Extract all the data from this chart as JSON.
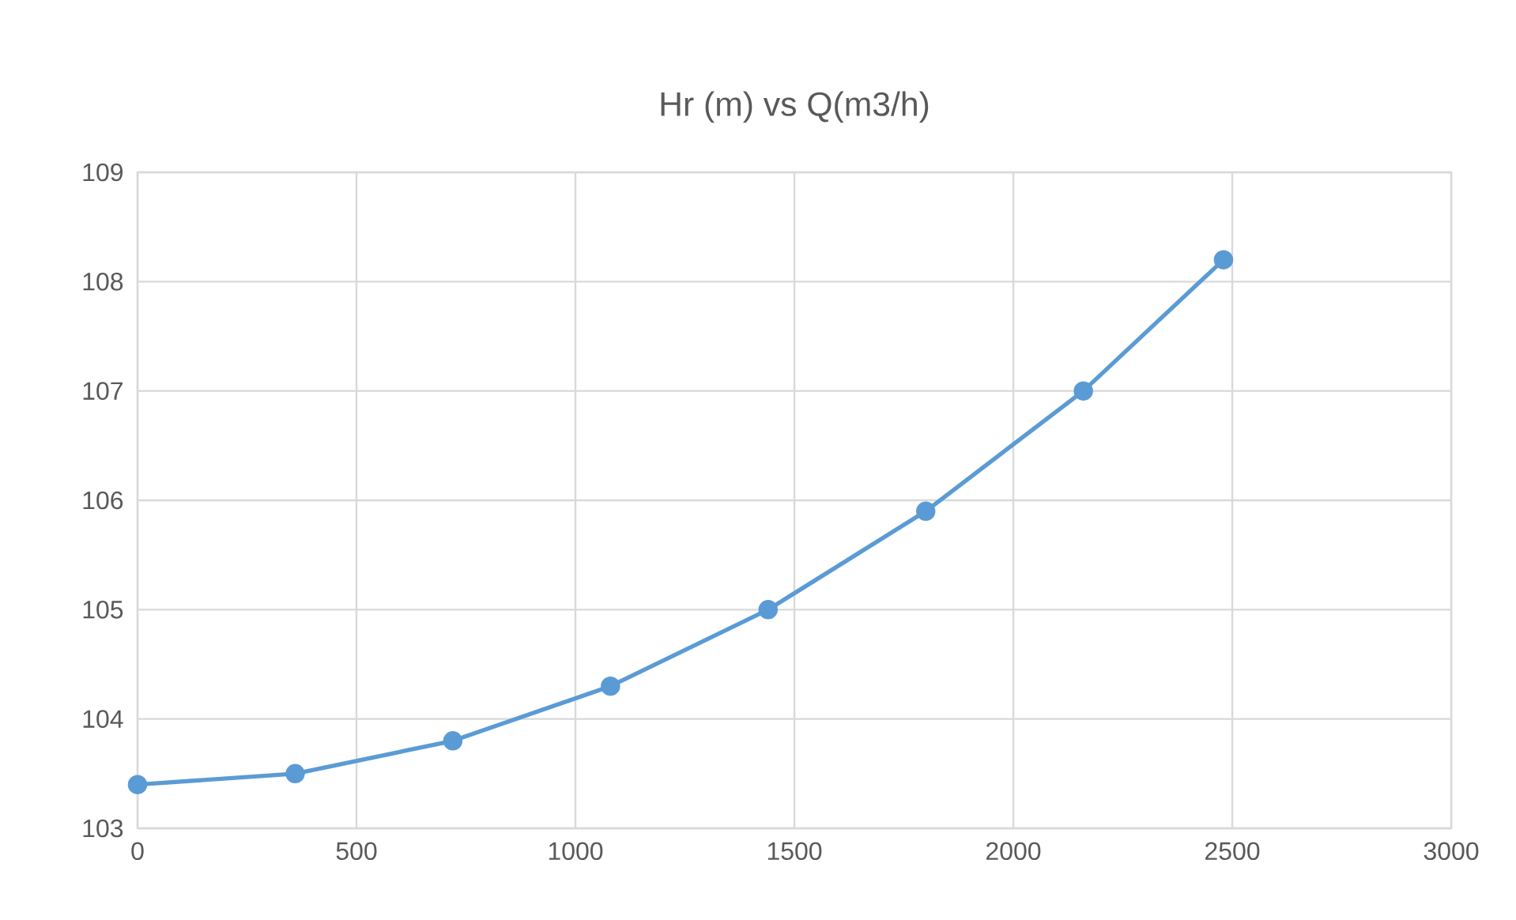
{
  "chart_data": {
    "type": "line",
    "title": "Hr (m) vs Q(m3/h)",
    "x": [
      0,
      360,
      720,
      1080,
      1440,
      1800,
      2160,
      2480
    ],
    "series": [
      {
        "color": "#5b9bd5",
        "values": [
          103.4,
          103.5,
          103.8,
          104.3,
          105.0,
          105.9,
          107.0,
          108.2
        ]
      }
    ],
    "xlim": [
      0,
      3000
    ],
    "xticks": [
      0,
      500,
      1000,
      1500,
      2000,
      2500,
      3000
    ],
    "ylim": [
      103,
      109
    ],
    "yticks": [
      103,
      104,
      105,
      106,
      107,
      108,
      109
    ],
    "grid": true,
    "marker": "circle",
    "line_style": "solid"
  }
}
